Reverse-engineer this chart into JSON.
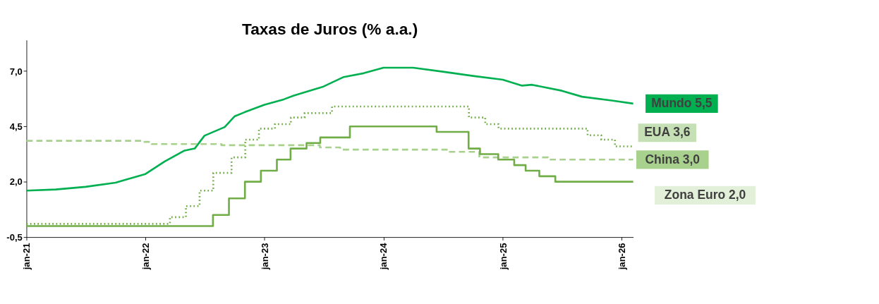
{
  "chart_data": {
    "type": "line",
    "title": "Taxas de Juros (% a.a.)",
    "xlim": [
      "2021-01-01",
      "2026-02-05"
    ],
    "xticks": [
      {
        "value": "2021-01-01",
        "label": "jan-21"
      },
      {
        "value": "2022-01-01",
        "label": "jan-22"
      },
      {
        "value": "2023-01-01",
        "label": "jan-23"
      },
      {
        "value": "2024-01-01",
        "label": "jan-24"
      },
      {
        "value": "2025-01-01",
        "label": "jan-25"
      },
      {
        "value": "2026-01-01",
        "label": "jan-26"
      }
    ],
    "ylim": [
      -0.5,
      8.4
    ],
    "yticks": [
      {
        "value": -0.5,
        "label": "-0,5"
      },
      {
        "value": 2.0,
        "label": "2,0"
      },
      {
        "value": 4.5,
        "label": "4,5"
      },
      {
        "value": 7.0,
        "label": "7,0"
      }
    ],
    "grid": false,
    "legend": false,
    "series": [
      {
        "name": "Mundo 5,5",
        "type": "line",
        "line_style": "solid",
        "color": "#00b050",
        "x": [
          "2021-01-01",
          "2021-04-01",
          "2021-07-01",
          "2021-10-01",
          "2022-01-01",
          "2022-03-01",
          "2022-05-01",
          "2022-06-01",
          "2022-07-01",
          "2022-09-01",
          "2022-10-01",
          "2022-11-01",
          "2023-01-01",
          "2023-03-01",
          "2023-04-01",
          "2023-07-01",
          "2023-09-01",
          "2023-11-01",
          "2024-01-01",
          "2024-04-01",
          "2024-07-01",
          "2024-10-01",
          "2025-01-01",
          "2025-03-01",
          "2025-04-01",
          "2025-07-01",
          "2025-09-01",
          "2025-12-01",
          "2026-02-05"
        ],
        "values": [
          1.6,
          1.65,
          1.77,
          1.96,
          2.35,
          2.92,
          3.41,
          3.5,
          4.08,
          4.47,
          4.95,
          5.14,
          5.48,
          5.72,
          5.89,
          6.3,
          6.73,
          6.9,
          7.15,
          7.15,
          6.97,
          6.78,
          6.61,
          6.34,
          6.38,
          6.11,
          5.84,
          5.67,
          5.53
        ]
      },
      {
        "name": "EUA 3,6",
        "type": "step",
        "line_style": "dotted",
        "color": "#70ad47",
        "x": [
          "2021-01-01",
          "2022-03-17",
          "2022-05-05",
          "2022-06-16",
          "2022-07-28",
          "2022-09-22",
          "2022-11-03",
          "2022-12-15",
          "2023-02-02",
          "2023-03-23",
          "2023-05-04",
          "2023-07-27",
          "2024-09-19",
          "2024-11-08",
          "2024-12-19",
          "2025-09-18",
          "2025-10-30",
          "2025-12-11",
          "2026-02-05"
        ],
        "values": [
          0.1,
          0.4,
          0.9,
          1.6,
          2.4,
          3.1,
          3.9,
          4.4,
          4.6,
          4.9,
          5.1,
          5.4,
          4.9,
          4.6,
          4.4,
          4.1,
          3.9,
          3.6,
          3.6
        ]
      },
      {
        "name": "China 3,0",
        "type": "step",
        "line_style": "dashed",
        "color": "#a9d18e",
        "x": [
          "2021-01-01",
          "2021-12-20",
          "2022-01-20",
          "2022-08-22",
          "2023-06-20",
          "2023-08-21",
          "2024-07-22",
          "2024-10-21",
          "2025-05-20",
          "2026-02-05"
        ],
        "values": [
          3.85,
          3.8,
          3.7,
          3.65,
          3.55,
          3.45,
          3.35,
          3.1,
          3.0,
          3.0
        ]
      },
      {
        "name": "Zona Euro 2,0",
        "type": "step",
        "line_style": "solid",
        "color": "#70ad47",
        "x": [
          "2021-01-01",
          "2022-07-27",
          "2022-09-14",
          "2022-11-02",
          "2022-12-21",
          "2023-02-08",
          "2023-03-22",
          "2023-05-10",
          "2023-06-21",
          "2023-09-20",
          "2024-06-12",
          "2024-09-18",
          "2024-10-23",
          "2024-12-18",
          "2025-02-05",
          "2025-03-12",
          "2025-04-23",
          "2025-06-11",
          "2026-02-05"
        ],
        "values": [
          0.0,
          0.5,
          1.25,
          2.0,
          2.5,
          3.0,
          3.5,
          3.75,
          4.0,
          4.5,
          4.25,
          3.5,
          3.25,
          3.0,
          2.75,
          2.5,
          2.25,
          2.0,
          2.0
        ]
      }
    ]
  }
}
